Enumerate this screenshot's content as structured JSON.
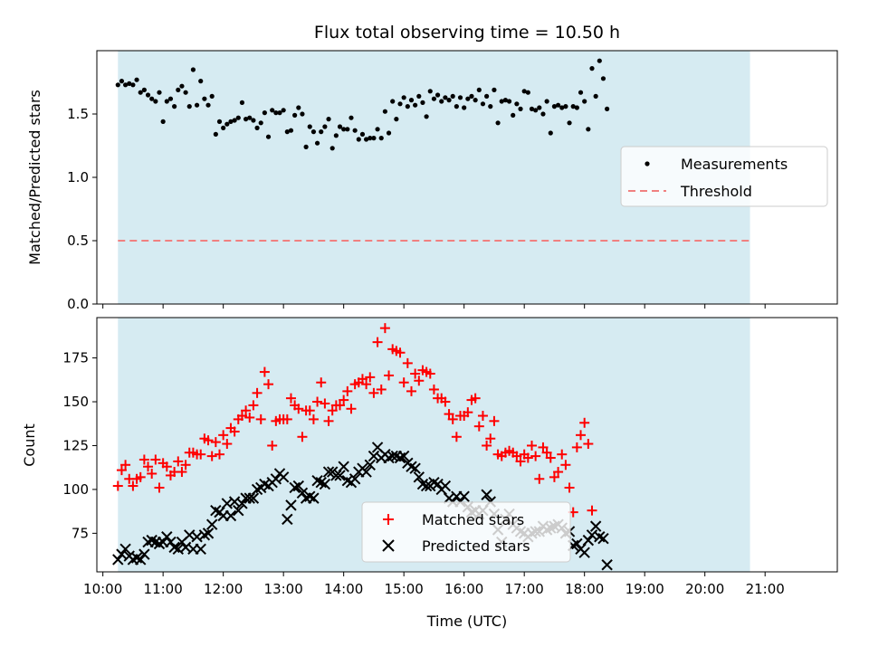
{
  "chart_data": [
    {
      "type": "scatter",
      "title": "Flux total observing time = 10.50 h",
      "ylabel": "Matched/Predicted stars",
      "xlabel": "",
      "xlim_hours": [
        9.9,
        22.2
      ],
      "ylim": [
        0.0,
        2.0
      ],
      "yticks": [
        0.0,
        0.5,
        1.0,
        1.5
      ],
      "ytick_labels": [
        "0.0",
        "0.5",
        "1.0",
        "1.5"
      ],
      "shaded_span_hours": [
        10.25,
        20.75
      ],
      "shade_color": "#add8e6",
      "legend": {
        "placement": "right",
        "items": [
          "Measurements",
          "Threshold"
        ]
      },
      "threshold": {
        "name": "Threshold",
        "value": 0.5,
        "color": "#f08080"
      },
      "series": [
        {
          "name": "Measurements",
          "color": "#000000",
          "x_start_hours": 10.25,
          "x_step_hours": 0.0625,
          "values": [
            1.73,
            1.76,
            1.73,
            1.74,
            1.73,
            1.77,
            1.67,
            1.69,
            1.65,
            1.62,
            1.6,
            1.67,
            1.44,
            1.6,
            1.62,
            1.56,
            1.69,
            1.72,
            1.67,
            1.56,
            1.85,
            1.57,
            1.76,
            1.62,
            1.57,
            1.64,
            1.34,
            1.44,
            1.39,
            1.42,
            1.44,
            1.45,
            1.47,
            1.59,
            1.46,
            1.47,
            1.45,
            1.39,
            1.43,
            1.51,
            1.32,
            1.53,
            1.51,
            1.51,
            1.53,
            1.36,
            1.37,
            1.49,
            1.55,
            1.5,
            1.24,
            1.4,
            1.36,
            1.27,
            1.36,
            1.4,
            1.46,
            1.23,
            1.33,
            1.4,
            1.38,
            1.38,
            1.47,
            1.37,
            1.3,
            1.34,
            1.3,
            1.31,
            1.31,
            1.38,
            1.31,
            1.52,
            1.35,
            1.6,
            1.46,
            1.58,
            1.63,
            1.56,
            1.61,
            1.57,
            1.64,
            1.59,
            1.48,
            1.68,
            1.62,
            1.65,
            1.6,
            1.63,
            1.61,
            1.64,
            1.56,
            1.63,
            1.55,
            1.62,
            1.64,
            1.61,
            1.69,
            1.58,
            1.64,
            1.56,
            1.69,
            1.43,
            1.6,
            1.61,
            1.6,
            1.49,
            1.58,
            1.54,
            1.68,
            1.67,
            1.54,
            1.53,
            1.55,
            1.5,
            1.6,
            1.35,
            1.56,
            1.57,
            1.55,
            1.56,
            1.43,
            1.56,
            1.55,
            1.67,
            1.6,
            1.38,
            1.86,
            1.64,
            1.92,
            1.78,
            1.54
          ]
        }
      ]
    },
    {
      "type": "scatter",
      "title": "",
      "ylabel": "Count",
      "xlabel": "Time (UTC)",
      "xlim_hours": [
        9.9,
        22.2
      ],
      "ylim": [
        53,
        198
      ],
      "yticks": [
        75,
        100,
        125,
        150,
        175
      ],
      "ytick_labels": [
        "75",
        "100",
        "125",
        "150",
        "175"
      ],
      "xticks_hours": [
        10,
        11,
        12,
        13,
        14,
        15,
        16,
        17,
        18,
        19,
        20,
        21
      ],
      "xtick_labels": [
        "10:00",
        "11:00",
        "12:00",
        "13:00",
        "14:00",
        "15:00",
        "16:00",
        "17:00",
        "18:00",
        "19:00",
        "20:00",
        "21:00"
      ],
      "shaded_span_hours": [
        10.25,
        20.75
      ],
      "shade_color": "#add8e6",
      "legend": {
        "placement": "lower center",
        "items": [
          "Matched stars",
          "Predicted stars"
        ]
      },
      "series": [
        {
          "name": "Matched stars",
          "marker": "+",
          "color": "#ff0000",
          "x_start_hours": 10.25,
          "x_step_hours": 0.0625,
          "values": [
            102,
            111,
            114,
            106,
            102,
            106,
            107,
            117,
            113,
            109,
            117,
            101,
            115,
            113,
            108,
            110,
            116,
            110,
            114,
            121,
            121,
            120,
            120,
            129,
            128,
            119,
            127,
            120,
            131,
            126,
            135,
            133,
            140,
            142,
            145,
            141,
            148,
            155,
            140,
            167,
            160,
            125,
            139,
            140,
            140,
            140,
            152,
            148,
            146,
            130,
            145,
            145,
            140,
            150,
            161,
            149,
            139,
            145,
            148,
            148,
            151,
            156,
            146,
            160,
            161,
            163,
            160,
            164,
            155,
            184,
            157,
            192,
            165,
            180,
            179,
            178,
            161,
            172,
            156,
            166,
            162,
            168,
            167,
            166,
            157,
            152,
            152,
            150,
            143,
            140,
            130,
            142,
            142,
            144,
            151,
            152,
            136,
            142,
            125,
            129,
            139,
            120,
            119,
            121,
            122,
            121,
            119,
            116,
            120,
            118,
            125,
            119,
            106,
            124,
            121,
            118,
            107,
            110,
            120,
            114,
            101,
            87,
            124,
            131,
            138,
            126,
            88
          ]
        },
        {
          "name": "Predicted stars",
          "marker": "x",
          "color": "#000000",
          "x_start_hours": 10.25,
          "x_step_hours": 0.0625,
          "values": [
            60,
            63,
            66,
            62,
            60,
            61,
            60,
            63,
            70,
            71,
            70,
            69,
            70,
            73,
            70,
            67,
            66,
            70,
            67,
            74,
            66,
            73,
            66,
            74,
            75,
            80,
            88,
            87,
            85,
            92,
            85,
            93,
            88,
            92,
            95,
            95,
            95,
            100,
            101,
            103,
            102,
            104,
            106,
            109,
            107,
            83,
            91,
            101,
            102,
            98,
            95,
            96,
            95,
            105,
            104,
            103,
            110,
            110,
            108,
            108,
            113,
            105,
            104,
            106,
            110,
            112,
            110,
            114,
            119,
            124,
            118,
            120,
            118,
            119,
            119,
            118,
            119,
            115,
            113,
            112,
            107,
            103,
            102,
            102,
            104,
            103,
            100,
            102,
            95,
            93,
            96,
            93,
            96,
            90,
            87,
            88,
            86,
            88,
            97,
            93,
            86,
            77,
            70,
            83,
            86,
            80,
            78,
            76,
            75,
            73,
            75,
            76,
            76,
            79,
            77,
            78,
            79,
            80,
            78,
            75,
            76,
            68,
            69,
            66,
            64,
            71,
            74,
            79,
            73,
            72,
            57
          ]
        }
      ]
    }
  ]
}
